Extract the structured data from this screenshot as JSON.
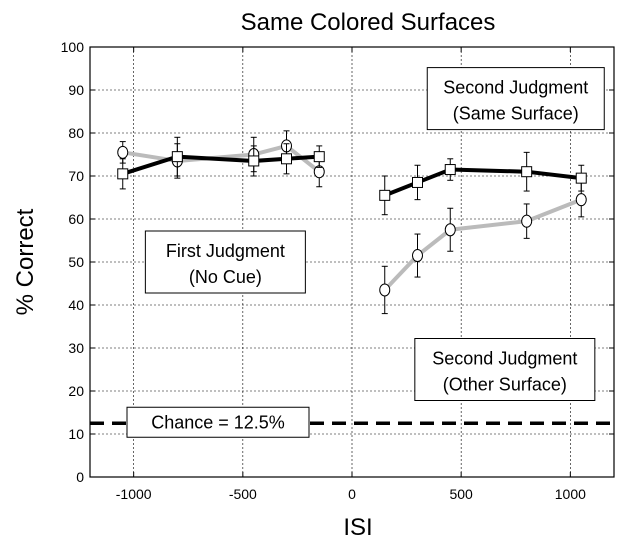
{
  "chart_data": {
    "type": "line",
    "title": "Same Colored Surfaces",
    "xlabel": "ISI",
    "ylabel": "% Correct",
    "xlim": [
      -1200,
      1200
    ],
    "ylim": [
      0,
      100
    ],
    "x_ticks": [
      -1000,
      -500,
      0,
      500,
      1000
    ],
    "y_ticks": [
      0,
      10,
      20,
      30,
      40,
      50,
      60,
      70,
      80,
      90,
      100
    ],
    "grid": true,
    "series": [
      {
        "group": "first-judgment",
        "line_color": "#000000",
        "marker": "square",
        "x": [
          -1050,
          -800,
          -450,
          -300,
          -150
        ],
        "y": [
          70.5,
          74.5,
          73.5,
          74,
          74.5
        ],
        "err": [
          3.5,
          4.5,
          3.5,
          3.5,
          2.5
        ]
      },
      {
        "group": "first-judgment",
        "line_color": "#bbbbbb",
        "marker": "circle",
        "x": [
          -1050,
          -800,
          -450,
          -300,
          -150
        ],
        "y": [
          75.5,
          73.5,
          75,
          77,
          71
        ],
        "err": [
          2.5,
          4,
          4,
          3.5,
          3.5
        ]
      },
      {
        "group": "second-judgment",
        "line_color": "#000000",
        "marker": "square",
        "x": [
          150,
          300,
          450,
          800,
          1050
        ],
        "y": [
          65.5,
          68.5,
          71.5,
          71,
          69.5
        ],
        "err": [
          4.5,
          4,
          2.5,
          4.5,
          3
        ]
      },
      {
        "group": "second-judgment",
        "line_color": "#bbbbbb",
        "marker": "circle",
        "x": [
          150,
          300,
          450,
          800,
          1050
        ],
        "y": [
          43.5,
          51.5,
          57.5,
          59.5,
          64.5
        ],
        "err": [
          5.5,
          5,
          5,
          4,
          4
        ]
      }
    ],
    "chance_line": {
      "y": 12.5,
      "label": "Chance = 12.5%"
    },
    "annotations": [
      {
        "lines": [
          "Second Judgment",
          "(Same Surface)"
        ],
        "x": 750,
        "y": 88
      },
      {
        "lines": [
          "First Judgment",
          "(No Cue)"
        ],
        "x": -580,
        "y": 50
      },
      {
        "lines": [
          "Second Judgment",
          "(Other Surface)"
        ],
        "x": 700,
        "y": 25
      }
    ]
  }
}
